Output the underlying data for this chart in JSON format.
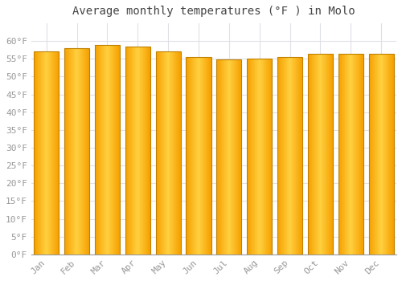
{
  "title": "Average monthly temperatures (°F ) in Molo",
  "months": [
    "Jan",
    "Feb",
    "Mar",
    "Apr",
    "May",
    "Jun",
    "Jul",
    "Aug",
    "Sep",
    "Oct",
    "Nov",
    "Dec"
  ],
  "values": [
    57.0,
    58.0,
    59.0,
    58.5,
    57.0,
    55.5,
    54.9,
    55.0,
    55.5,
    56.5,
    56.5,
    56.5
  ],
  "bar_color_center": "#FFD040",
  "bar_color_edge": "#F5A000",
  "bar_edge_color": "#C08000",
  "background_color": "#FFFFFF",
  "plot_bg_color": "#FFFFFF",
  "grid_color": "#E0E0E8",
  "tick_label_color": "#999999",
  "title_color": "#444444",
  "ylim": [
    0,
    65
  ],
  "yticks": [
    0,
    5,
    10,
    15,
    20,
    25,
    30,
    35,
    40,
    45,
    50,
    55,
    60
  ],
  "title_fontsize": 10,
  "tick_fontsize": 8,
  "bar_width": 0.82
}
